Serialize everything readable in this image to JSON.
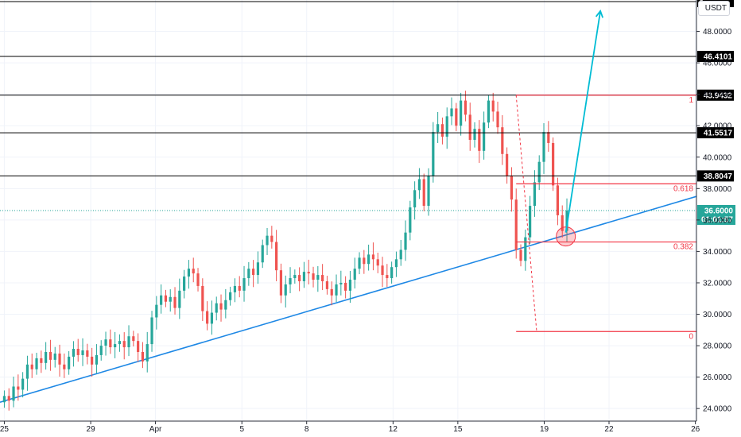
{
  "chart_data": {
    "type": "candlestick",
    "currency": "USDT",
    "ylim": [
      23.2,
      50.0
    ],
    "y_ticks": [
      "24.0000",
      "26.0000",
      "28.0000",
      "30.0000",
      "32.0000",
      "34.0000",
      "36.0000",
      "38.0000",
      "40.0000",
      "42.0000",
      "44.0000",
      "46.0000",
      "48.0000"
    ],
    "x_ticks": [
      {
        "label": "25",
        "day": 0
      },
      {
        "label": "29",
        "day": 4
      },
      {
        "label": "Apr",
        "day": 7
      },
      {
        "label": "5",
        "day": 11
      },
      {
        "label": "8",
        "day": 14
      },
      {
        "label": "12",
        "day": 18
      },
      {
        "label": "15",
        "day": 21
      },
      {
        "label": "19",
        "day": 25
      },
      {
        "label": "22",
        "day": 28
      },
      {
        "label": "26",
        "day": 32
      }
    ],
    "x_range_days": [
      -0.2,
      32.05
    ],
    "resistance_levels": [
      "46.4101",
      "43.9432",
      "41.5517",
      "38.8047"
    ],
    "top_level_label": "4",
    "current_price": {
      "value": "36.6000",
      "countdown": "01:01:57",
      "level": 36.6
    },
    "fibonacci": {
      "high": 43.9432,
      "low": 28.9,
      "labels": [
        {
          "text": "1",
          "level": 43.9432
        },
        {
          "text": "0.618",
          "level": 38.3
        },
        {
          "text": "0.382",
          "level": 34.6
        },
        {
          "text": "0",
          "level": 28.9
        }
      ]
    },
    "trendline": {
      "start": {
        "day": -0.2,
        "price": 24.4
      },
      "end": {
        "day": 32.05,
        "price": 37.5
      }
    },
    "projection": {
      "start": {
        "day": 26.0,
        "price": 35.2
      },
      "end": {
        "day": 27.6,
        "price": 49.3
      }
    },
    "candle_series": [
      24.8,
      24.5,
      25.4,
      25.2,
      25.9,
      26.8,
      26.5,
      27.2,
      26.9,
      27.6,
      27.1,
      27.5,
      26.8,
      26.5,
      27.3,
      27.8,
      27.4,
      27.7,
      27.3,
      26.8,
      27.4,
      28.0,
      28.4,
      27.9,
      28.1,
      28.3,
      27.9,
      28.6,
      28.3,
      27.6,
      27.0,
      28.1,
      29.8,
      30.6,
      31.2,
      30.8,
      31.1,
      30.4,
      31.5,
      32.4,
      32.9,
      32.6,
      31.8,
      30.2,
      29.4,
      30.1,
      30.7,
      30.3,
      30.9,
      31.4,
      31.8,
      31.5,
      32.3,
      32.9,
      32.5,
      33.3,
      34.4,
      35.0,
      34.6,
      32.8,
      31.2,
      31.9,
      32.3,
      32.5,
      32.1,
      32.7,
      32.6,
      32.2,
      32.5,
      32.1,
      31.6,
      31.2,
      31.9,
      32.0,
      31.5,
      32.2,
      32.9,
      33.6,
      33.2,
      33.8,
      33.5,
      33.1,
      32.5,
      32.3,
      33.0,
      33.5,
      34.1,
      35.2,
      36.8,
      37.9,
      38.6,
      36.9,
      38.8,
      41.6,
      42.1,
      41.3,
      42.6,
      43.1,
      42.0,
      43.6,
      42.7,
      41.1,
      41.8,
      40.4,
      42.2,
      43.6,
      42.9,
      41.9,
      40.2,
      38.8,
      37.3,
      34.1,
      33.4,
      34.9,
      36.9,
      38.4,
      39.7,
      41.6,
      40.9,
      38.2,
      36.3,
      35.3,
      36.6
    ]
  }
}
